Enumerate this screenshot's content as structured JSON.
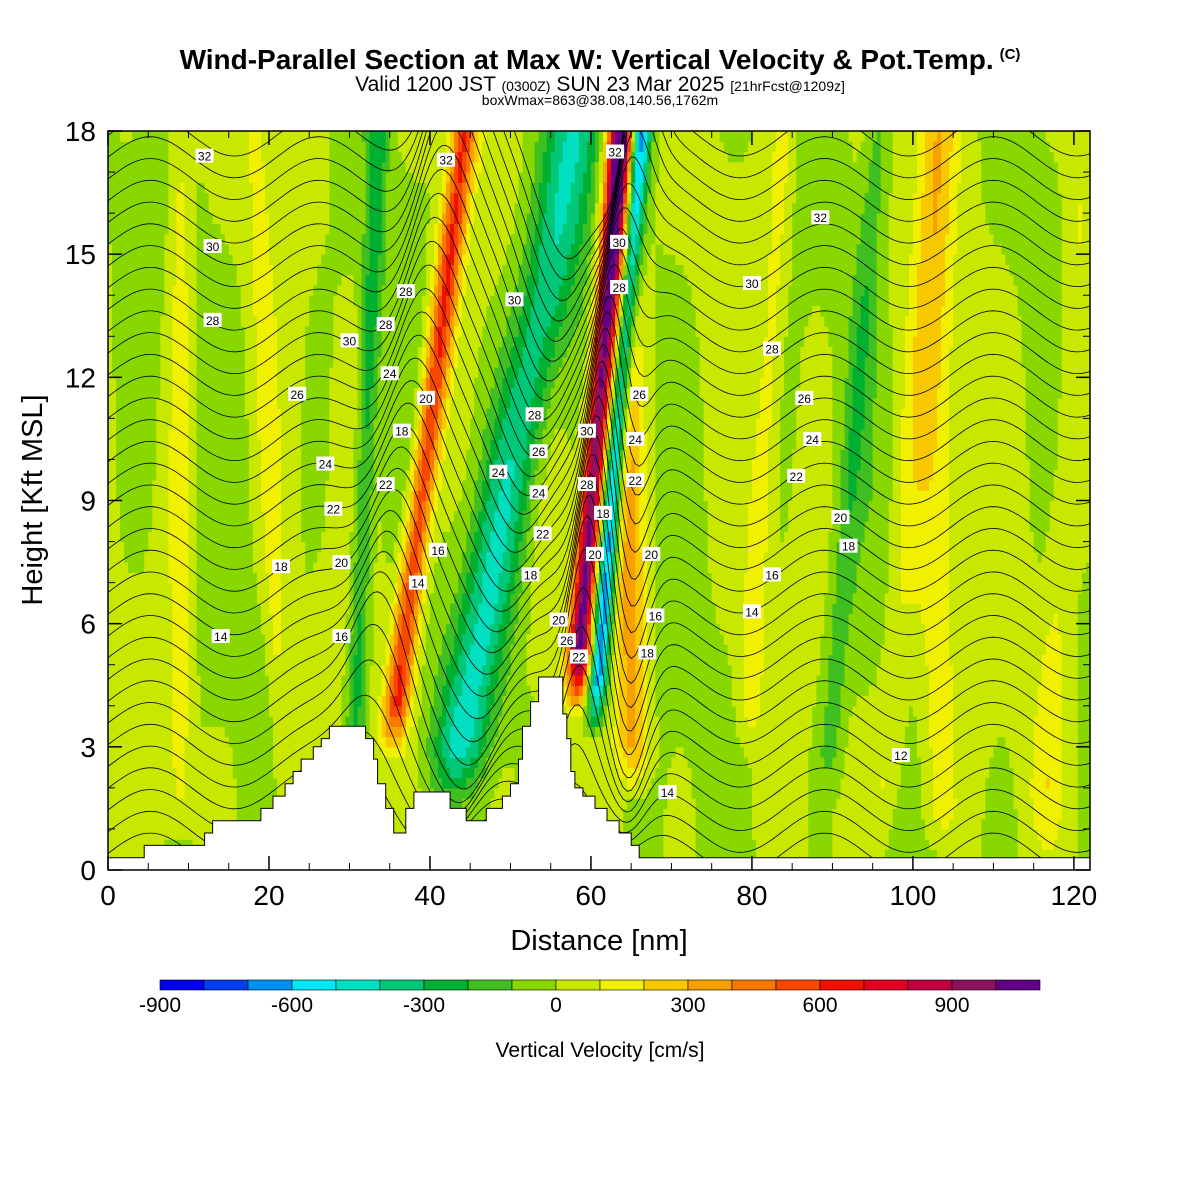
{
  "header": {
    "title": "Wind-Parallel Section at Max W: Vertical Velocity & Pot.Temp.",
    "copyright": "(C)",
    "valid_prefix": "Valid 1200 JST",
    "valid_zulu": "(0300Z)",
    "valid_date": "SUN 23 Mar 2025",
    "forecast": "[21hrFcst@1209z]",
    "box_info": "boxWmax=863@38.08,140.56,1762m"
  },
  "chart_data": {
    "type": "heatmap",
    "xlabel": "Distance [nm]",
    "ylabel": "Height [Kft MSL]",
    "xlim": [
      0,
      122
    ],
    "ylim": [
      0,
      18
    ],
    "x_ticks": [
      0,
      20,
      40,
      60,
      80,
      100,
      120
    ],
    "y_ticks": [
      0,
      3,
      6,
      9,
      12,
      15,
      18
    ],
    "colorbar": {
      "label": "Vertical Velocity [cm/s]",
      "tick_values": [
        -900,
        -600,
        -300,
        0,
        300,
        600,
        900
      ],
      "tick_labels": [
        "-900",
        "-600",
        "-300",
        "0",
        "300",
        "600",
        "900"
      ],
      "levels": [
        -900,
        -800,
        -700,
        -600,
        -500,
        -400,
        -300,
        -200,
        -100,
        0,
        100,
        200,
        300,
        400,
        500,
        600,
        700,
        800,
        900,
        1000,
        1100
      ],
      "colors": [
        "#0000f0",
        "#0040f0",
        "#0090f0",
        "#00e8f8",
        "#00e0c0",
        "#00c878",
        "#00b030",
        "#40c020",
        "#88d800",
        "#c8e800",
        "#f0f000",
        "#f8c800",
        "#f8a000",
        "#f87800",
        "#f84800",
        "#f01000",
        "#e00020",
        "#c00040",
        "#901060",
        "#600088"
      ]
    },
    "terrain_profile_kft": [
      [
        0,
        0.3
      ],
      [
        4.5,
        0.3
      ],
      [
        4.5,
        0.6
      ],
      [
        12,
        0.6
      ],
      [
        12,
        0.9
      ],
      [
        13,
        0.9
      ],
      [
        13,
        1.2
      ],
      [
        19,
        1.2
      ],
      [
        19,
        1.5
      ],
      [
        20.5,
        1.5
      ],
      [
        20.5,
        1.8
      ],
      [
        22,
        1.8
      ],
      [
        22,
        2.1
      ],
      [
        23,
        2.1
      ],
      [
        23,
        2.4
      ],
      [
        24,
        2.4
      ],
      [
        24,
        2.7
      ],
      [
        25.5,
        2.7
      ],
      [
        25.5,
        3.0
      ],
      [
        26.5,
        3.0
      ],
      [
        26.5,
        3.2
      ],
      [
        27.5,
        3.2
      ],
      [
        27.5,
        3.5
      ],
      [
        32,
        3.5
      ],
      [
        32,
        3.2
      ],
      [
        33,
        3.2
      ],
      [
        33,
        2.7
      ],
      [
        33.5,
        2.7
      ],
      [
        33.5,
        2.1
      ],
      [
        34.5,
        2.1
      ],
      [
        34.5,
        1.5
      ],
      [
        35.5,
        1.5
      ],
      [
        35.5,
        0.9
      ],
      [
        37,
        0.9
      ],
      [
        37,
        1.5
      ],
      [
        38,
        1.5
      ],
      [
        38,
        1.9
      ],
      [
        42.5,
        1.9
      ],
      [
        42.5,
        1.5
      ],
      [
        44.5,
        1.5
      ],
      [
        44.5,
        1.2
      ],
      [
        47,
        1.2
      ],
      [
        47,
        1.5
      ],
      [
        49,
        1.5
      ],
      [
        49,
        1.8
      ],
      [
        50,
        1.8
      ],
      [
        50,
        2.1
      ],
      [
        51,
        2.1
      ],
      [
        51,
        2.7
      ],
      [
        51.5,
        2.7
      ],
      [
        51.5,
        3.5
      ],
      [
        52.5,
        3.5
      ],
      [
        52.5,
        4.1
      ],
      [
        53.5,
        4.1
      ],
      [
        53.5,
        4.7
      ],
      [
        56.5,
        4.7
      ],
      [
        56.5,
        3.8
      ],
      [
        57,
        3.8
      ],
      [
        57,
        3.2
      ],
      [
        57.5,
        3.2
      ],
      [
        57.5,
        2.4
      ],
      [
        58,
        2.4
      ],
      [
        58,
        2.0
      ],
      [
        59,
        2.0
      ],
      [
        59,
        1.8
      ],
      [
        60.5,
        1.8
      ],
      [
        60.5,
        1.5
      ],
      [
        62,
        1.5
      ],
      [
        62,
        1.2
      ],
      [
        63.5,
        1.2
      ],
      [
        63.5,
        0.9
      ],
      [
        65,
        0.9
      ],
      [
        65,
        0.6
      ],
      [
        66,
        0.6
      ],
      [
        66,
        0.3
      ],
      [
        122,
        0.3
      ]
    ],
    "velocity_field": [
      {
        "x_center": 33.5,
        "width": 1.6,
        "lean_nm_per_kft": 0.6,
        "base_kft": 3.0,
        "w_cm_s": 600
      },
      {
        "x_center": 41.0,
        "width": 3.5,
        "lean_nm_per_kft": 0.95,
        "base_kft": 2.0,
        "w_cm_s": -400
      },
      {
        "x_center": 56.5,
        "width": 1.4,
        "lean_nm_per_kft": 0.4,
        "base_kft": 4.2,
        "w_cm_s": 1050
      },
      {
        "x_center": 59.0,
        "width": 1.2,
        "lean_nm_per_kft": 0.4,
        "base_kft": 3.5,
        "w_cm_s": -700
      },
      {
        "x_center": 65.5,
        "width": 2.0,
        "lean_nm_per_kft": -0.1,
        "base_kft": 2.0,
        "w_cm_s": 350
      },
      {
        "x_center": 30.0,
        "width": 1.2,
        "lean_nm_per_kft": 0.2,
        "base_kft": 1.0,
        "w_cm_s": -250
      },
      {
        "x_center": 9.0,
        "width": 1.5,
        "lean_nm_per_kft": 0,
        "base_kft": 1.0,
        "w_cm_s": 150
      },
      {
        "x_center": 22.0,
        "width": 1.2,
        "lean_nm_per_kft": -0.2,
        "base_kft": 1.0,
        "w_cm_s": 120
      },
      {
        "x_center": 78.5,
        "width": 1.5,
        "lean_nm_per_kft": 0.3,
        "base_kft": 3.0,
        "w_cm_s": 140
      },
      {
        "x_center": 88.5,
        "width": 1.5,
        "lean_nm_per_kft": 0.4,
        "base_kft": 2.0,
        "w_cm_s": -150
      },
      {
        "x_center": 96.0,
        "width": 2.0,
        "lean_nm_per_kft": 0.4,
        "base_kft": 1.0,
        "w_cm_s": 110
      },
      {
        "x_center": 103.0,
        "width": 2.5,
        "lean_nm_per_kft": 0,
        "base_kft": 0.5,
        "w_cm_s": 160
      },
      {
        "x_center": 116.0,
        "width": 2.0,
        "lean_nm_per_kft": 0.3,
        "base_kft": 1.0,
        "w_cm_s": 120
      }
    ],
    "theta_levels": [
      12,
      14,
      16,
      18,
      20,
      22,
      24,
      26,
      28,
      30,
      32
    ],
    "contour_labels": [
      {
        "text": "32",
        "x": 12,
        "y": 17.4
      },
      {
        "text": "32",
        "x": 42,
        "y": 17.3
      },
      {
        "text": "32",
        "x": 63,
        "y": 17.5
      },
      {
        "text": "32",
        "x": 88.5,
        "y": 15.9
      },
      {
        "text": "30",
        "x": 13,
        "y": 15.2
      },
      {
        "text": "30",
        "x": 63.5,
        "y": 15.3
      },
      {
        "text": "30",
        "x": 80,
        "y": 14.3
      },
      {
        "text": "30",
        "x": 50.5,
        "y": 13.9
      },
      {
        "text": "30",
        "x": 30,
        "y": 12.9
      },
      {
        "text": "30",
        "x": 59.5,
        "y": 10.7
      },
      {
        "text": "28",
        "x": 13,
        "y": 13.4
      },
      {
        "text": "28",
        "x": 37,
        "y": 14.1
      },
      {
        "text": "28",
        "x": 34.5,
        "y": 13.3
      },
      {
        "text": "28",
        "x": 63.5,
        "y": 14.2
      },
      {
        "text": "28",
        "x": 82.5,
        "y": 12.7
      },
      {
        "text": "28",
        "x": 53,
        "y": 11.1
      },
      {
        "text": "28",
        "x": 59.5,
        "y": 9.4
      },
      {
        "text": "26",
        "x": 23.5,
        "y": 11.6
      },
      {
        "text": "26",
        "x": 66,
        "y": 11.6
      },
      {
        "text": "26",
        "x": 86.5,
        "y": 11.5
      },
      {
        "text": "26",
        "x": 53.5,
        "y": 10.2
      },
      {
        "text": "26",
        "x": 57,
        "y": 5.6
      },
      {
        "text": "24",
        "x": 35,
        "y": 12.1
      },
      {
        "text": "24",
        "x": 65.5,
        "y": 10.5
      },
      {
        "text": "24",
        "x": 87.5,
        "y": 10.5
      },
      {
        "text": "24",
        "x": 27,
        "y": 9.9
      },
      {
        "text": "24",
        "x": 48.5,
        "y": 9.7
      },
      {
        "text": "24",
        "x": 53.5,
        "y": 9.2
      },
      {
        "text": "22",
        "x": 34.5,
        "y": 9.4
      },
      {
        "text": "22",
        "x": 65.5,
        "y": 9.5
      },
      {
        "text": "22",
        "x": 85.5,
        "y": 9.6
      },
      {
        "text": "22",
        "x": 28,
        "y": 8.8
      },
      {
        "text": "22",
        "x": 54,
        "y": 8.2
      },
      {
        "text": "22",
        "x": 58.5,
        "y": 5.2
      },
      {
        "text": "20",
        "x": 39.5,
        "y": 11.5
      },
      {
        "text": "20",
        "x": 91,
        "y": 8.6
      },
      {
        "text": "20",
        "x": 29,
        "y": 7.5
      },
      {
        "text": "20",
        "x": 60.5,
        "y": 7.7
      },
      {
        "text": "20",
        "x": 67.5,
        "y": 7.7
      },
      {
        "text": "20",
        "x": 56,
        "y": 6.1
      },
      {
        "text": "18",
        "x": 36.5,
        "y": 10.7
      },
      {
        "text": "18",
        "x": 61.5,
        "y": 8.7
      },
      {
        "text": "18",
        "x": 92,
        "y": 7.9
      },
      {
        "text": "18",
        "x": 21.5,
        "y": 7.4
      },
      {
        "text": "18",
        "x": 52.5,
        "y": 7.2
      },
      {
        "text": "18",
        "x": 67,
        "y": 5.3
      },
      {
        "text": "16",
        "x": 41,
        "y": 7.8
      },
      {
        "text": "16",
        "x": 82.5,
        "y": 7.2
      },
      {
        "text": "16",
        "x": 29,
        "y": 5.7
      },
      {
        "text": "16",
        "x": 68,
        "y": 6.2
      },
      {
        "text": "14",
        "x": 38.5,
        "y": 7.0
      },
      {
        "text": "14",
        "x": 80,
        "y": 6.3
      },
      {
        "text": "14",
        "x": 14,
        "y": 5.7
      },
      {
        "text": "14",
        "x": 69.5,
        "y": 1.9
      },
      {
        "text": "12",
        "x": 98.5,
        "y": 2.8
      }
    ]
  }
}
